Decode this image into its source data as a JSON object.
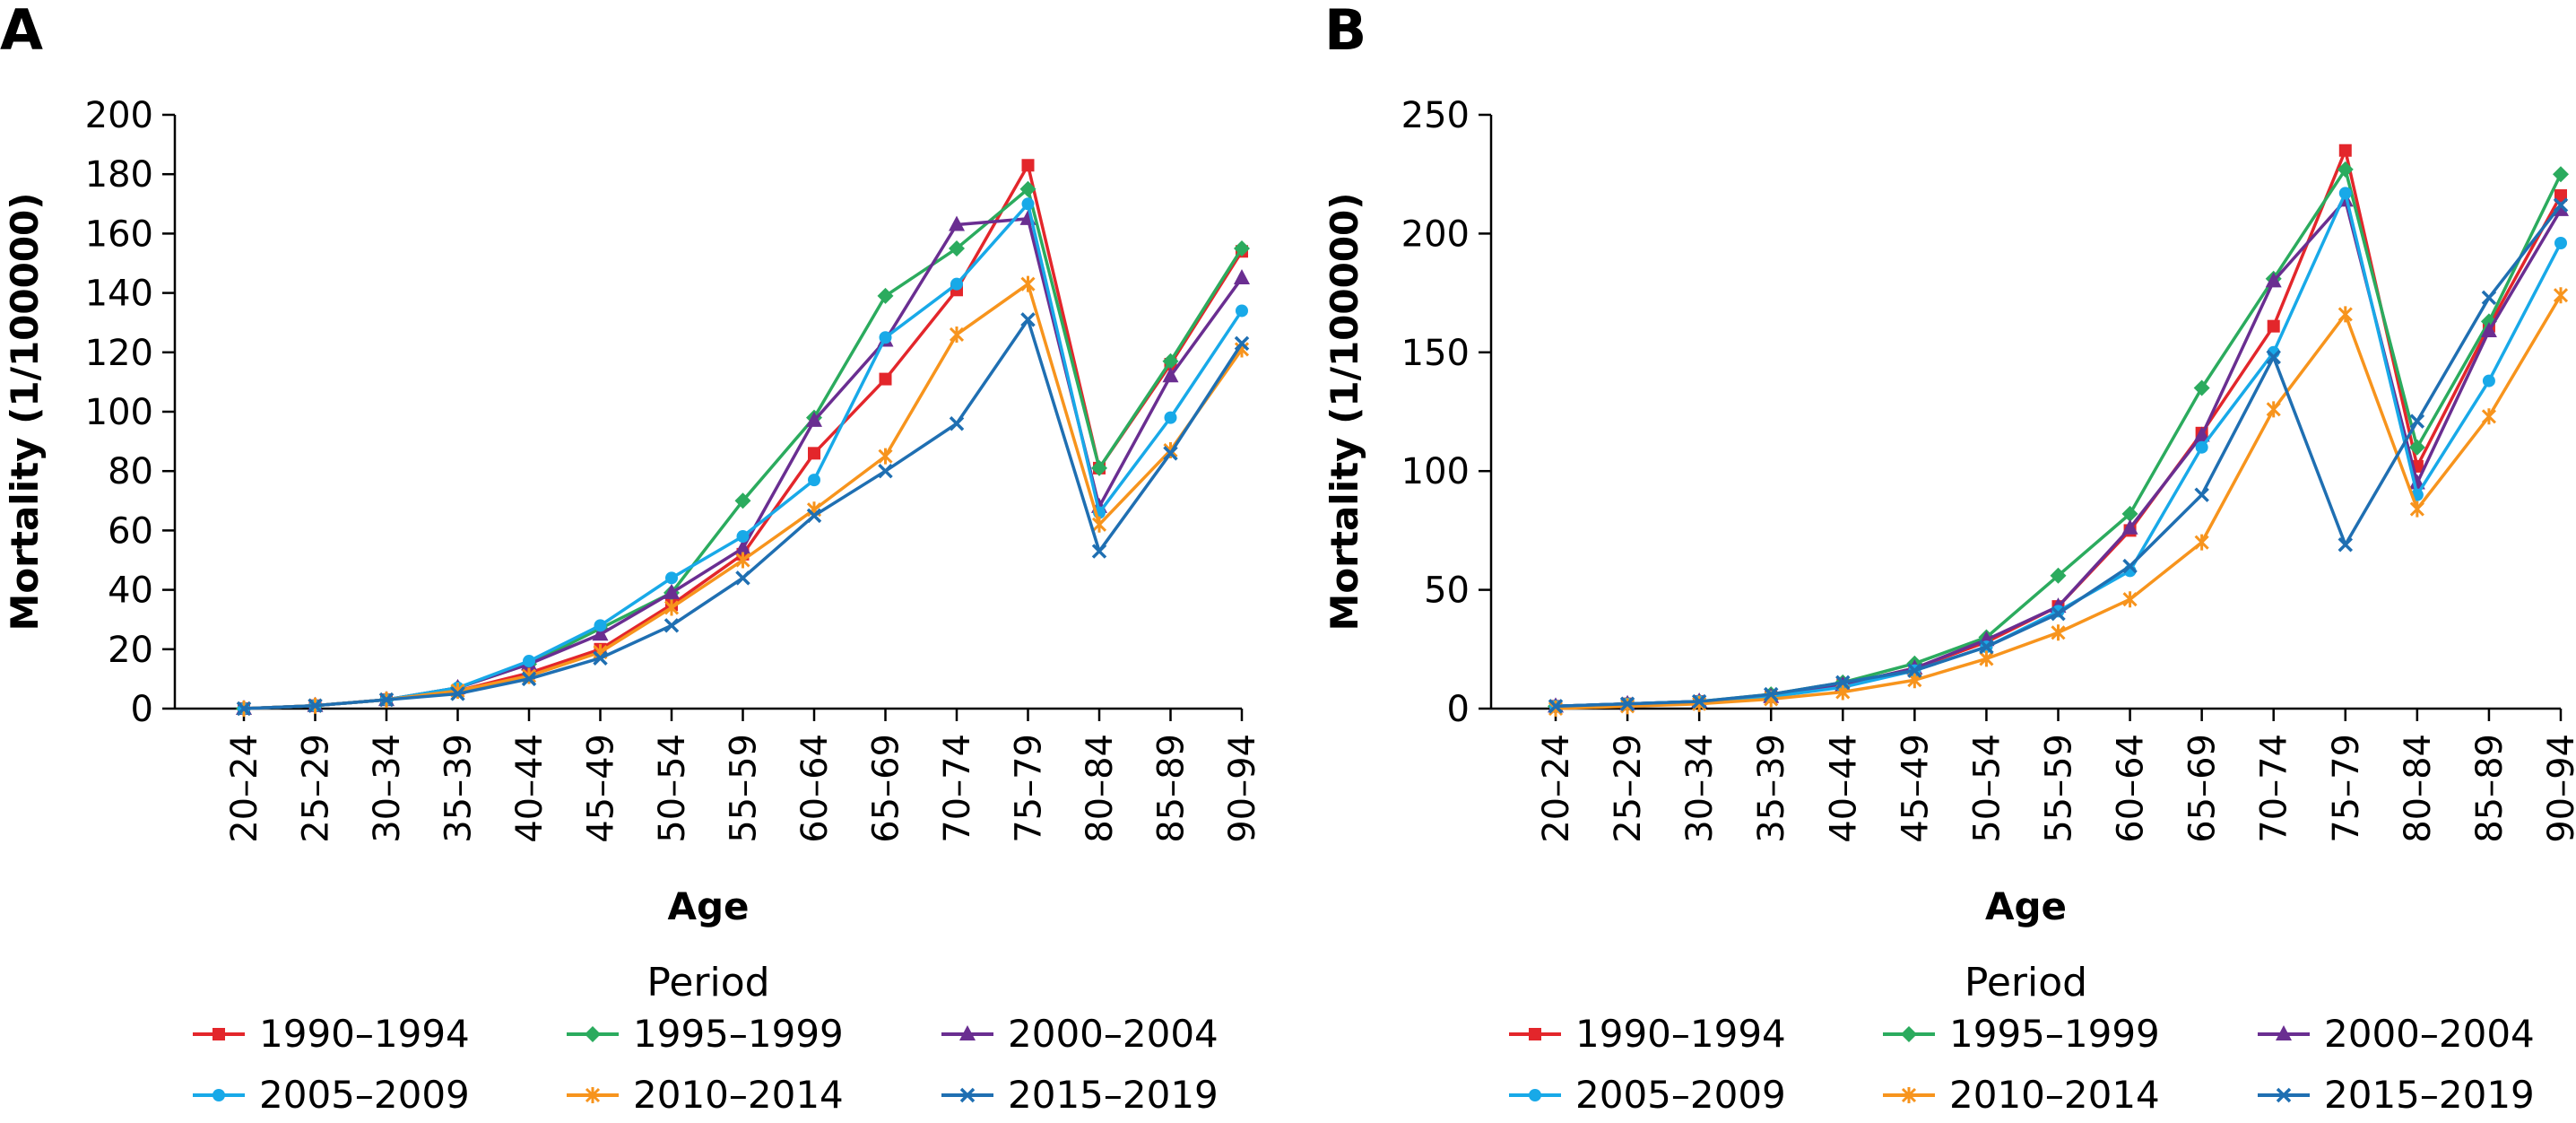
{
  "colors": {
    "1990–1994": "#e3262b",
    "1995–1999": "#2bab5e",
    "2000–2004": "#6a2e91",
    "2005–2009": "#18a9e8",
    "2010–2014": "#f7941d",
    "2015–2019": "#1f6fb2"
  },
  "markers": {
    "1990–1994": "square",
    "1995–1999": "diamond",
    "2000–2004": "triangle",
    "2005–2009": "circle",
    "2010–2014": "star",
    "2015–2019": "x"
  },
  "chart_data": [
    {
      "panel": "A",
      "type": "line",
      "xlabel": "Age",
      "ylabel": "Mortality (1/100000)",
      "ylim": [
        0,
        200
      ],
      "yticks": [
        0,
        20,
        40,
        60,
        80,
        100,
        120,
        140,
        160,
        180,
        200
      ],
      "categories": [
        "20–24",
        "25–29",
        "30–34",
        "35–39",
        "40–44",
        "45–49",
        "50–54",
        "55–59",
        "60–64",
        "65–69",
        "70–74",
        "75–79",
        "80–84",
        "85–89",
        "90–94"
      ],
      "legend_title": "Period",
      "legend_position": "bottom",
      "grid": false,
      "series": [
        {
          "name": "1990–1994",
          "values": [
            0,
            1,
            3,
            6,
            12,
            20,
            35,
            52,
            86,
            111,
            141,
            183,
            81,
            116,
            154
          ]
        },
        {
          "name": "1995–1999",
          "values": [
            0,
            1,
            3,
            7,
            15,
            27,
            39,
            70,
            98,
            139,
            155,
            175,
            81,
            117,
            155
          ]
        },
        {
          "name": "2000–2004",
          "values": [
            0,
            1,
            3,
            7,
            15,
            25,
            39,
            54,
            97,
            124,
            163,
            165,
            68,
            112,
            145
          ]
        },
        {
          "name": "2005–2009",
          "values": [
            0,
            1,
            3,
            7,
            16,
            28,
            44,
            58,
            77,
            125,
            143,
            170,
            66,
            98,
            134
          ]
        },
        {
          "name": "2010–2014",
          "values": [
            0,
            1,
            3,
            6,
            11,
            19,
            34,
            50,
            67,
            85,
            126,
            143,
            62,
            87,
            121
          ]
        },
        {
          "name": "2015–2019",
          "values": [
            0,
            1,
            3,
            5,
            10,
            17,
            28,
            44,
            65,
            80,
            96,
            131,
            53,
            86,
            123
          ]
        }
      ]
    },
    {
      "panel": "B",
      "type": "line",
      "xlabel": "Age",
      "ylabel": "Mortality (1/100000)",
      "ylim": [
        0,
        250
      ],
      "yticks": [
        0,
        50,
        100,
        150,
        200,
        250
      ],
      "categories": [
        "20–24",
        "25–29",
        "30–34",
        "35–39",
        "40–44",
        "45–49",
        "50–54",
        "55–59",
        "60–64",
        "65–69",
        "70–74",
        "75–79",
        "80–84",
        "85–89",
        "90–94"
      ],
      "legend_title": "Period",
      "legend_position": "bottom",
      "grid": false,
      "series": [
        {
          "name": "1990–1994",
          "values": [
            1,
            2,
            3,
            5,
            10,
            17,
            28,
            43,
            75,
            116,
            161,
            235,
            102,
            161,
            216
          ]
        },
        {
          "name": "1995–1999",
          "values": [
            1,
            2,
            3,
            6,
            11,
            19,
            30,
            56,
            82,
            135,
            181,
            227,
            110,
            163,
            225
          ]
        },
        {
          "name": "2000–2004",
          "values": [
            1,
            2,
            3,
            5,
            10,
            17,
            29,
            43,
            76,
            115,
            180,
            214,
            95,
            159,
            210
          ]
        },
        {
          "name": "2005–2009",
          "values": [
            1,
            2,
            3,
            5,
            9,
            16,
            26,
            41,
            58,
            110,
            150,
            217,
            90,
            138,
            196
          ]
        },
        {
          "name": "2010–2014",
          "values": [
            0,
            1,
            2,
            4,
            7,
            12,
            21,
            32,
            46,
            70,
            126,
            166,
            84,
            123,
            174
          ]
        },
        {
          "name": "2015–2019",
          "values": [
            1,
            2,
            3,
            6,
            11,
            16,
            26,
            40,
            60,
            90,
            148,
            69,
            121,
            173,
            212
          ]
        }
      ]
    }
  ]
}
